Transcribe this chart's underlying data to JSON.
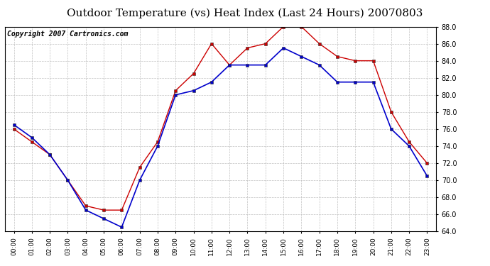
{
  "title": "Outdoor Temperature (vs) Heat Index (Last 24 Hours) 20070803",
  "copyright": "Copyright 2007 Cartronics.com",
  "hours": [
    "00:00",
    "01:00",
    "02:00",
    "03:00",
    "04:00",
    "05:00",
    "06:00",
    "07:00",
    "08:00",
    "09:00",
    "10:00",
    "11:00",
    "12:00",
    "13:00",
    "14:00",
    "15:00",
    "16:00",
    "17:00",
    "18:00",
    "19:00",
    "20:00",
    "21:00",
    "22:00",
    "23:00"
  ],
  "temp": [
    76.5,
    75.0,
    73.0,
    70.0,
    66.5,
    65.5,
    64.5,
    70.0,
    74.0,
    80.0,
    80.5,
    81.5,
    83.5,
    83.5,
    83.5,
    85.5,
    84.5,
    83.5,
    81.5,
    81.5,
    81.5,
    76.0,
    74.0,
    70.5
  ],
  "heat_index": [
    76.0,
    74.5,
    73.0,
    70.0,
    67.0,
    66.5,
    66.5,
    71.5,
    74.5,
    80.5,
    82.5,
    86.0,
    83.5,
    85.5,
    86.0,
    88.0,
    88.0,
    86.0,
    84.5,
    84.0,
    84.0,
    78.0,
    74.5,
    72.0
  ],
  "temp_color": "#0000cc",
  "heat_color": "#cc0000",
  "ylim_min": 64.0,
  "ylim_max": 88.0,
  "ytick_step": 2.0,
  "bg_color": "#ffffff",
  "grid_color": "#bbbbbb",
  "title_fontsize": 11,
  "copyright_fontsize": 7
}
